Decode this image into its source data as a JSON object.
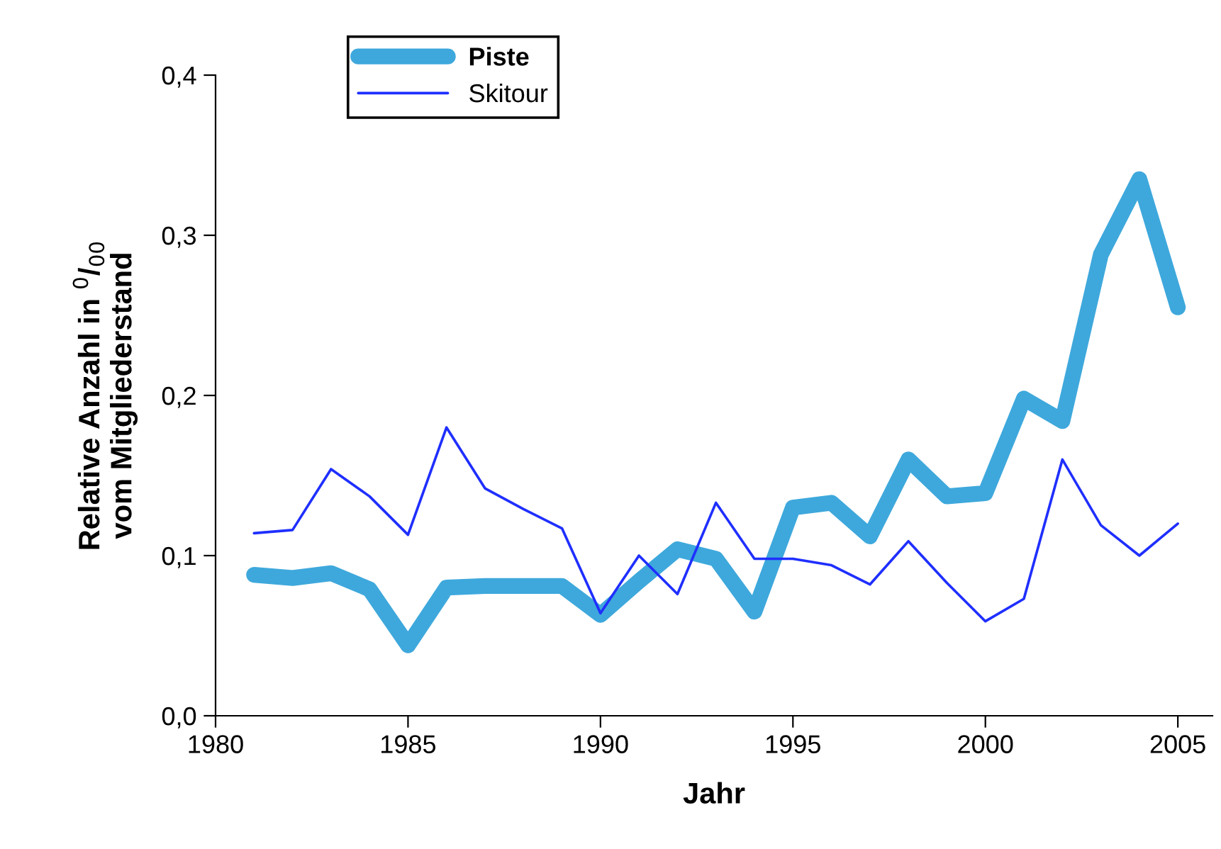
{
  "chart_data": {
    "type": "line",
    "xlabel": "Jahr",
    "ylabel": "Relative Anzahl in $^{0}$/$_{00}$\nvom Mitgliederstand",
    "x": [
      1981,
      1982,
      1983,
      1984,
      1985,
      1986,
      1987,
      1988,
      1989,
      1990,
      1991,
      1992,
      1993,
      1994,
      1995,
      1996,
      1997,
      1998,
      1999,
      2000,
      2001,
      2002,
      2003,
      2004,
      2005
    ],
    "series": [
      {
        "name": "Piste",
        "color": "#3ea8dc",
        "values": [
          0.088,
          0.086,
          0.089,
          0.079,
          0.044,
          0.08,
          0.081,
          0.081,
          0.081,
          0.063,
          0.084,
          0.104,
          0.098,
          0.065,
          0.13,
          0.133,
          0.112,
          0.16,
          0.137,
          0.139,
          0.198,
          0.184,
          0.288,
          0.335,
          0.255
        ]
      },
      {
        "name": "Skitour",
        "color": "#1f2fff",
        "values": [
          0.114,
          0.116,
          0.154,
          0.137,
          0.113,
          0.18,
          0.142,
          0.129,
          0.117,
          0.064,
          0.1,
          0.076,
          0.133,
          0.098,
          0.098,
          0.094,
          0.082,
          0.109,
          0.083,
          0.059,
          0.073,
          0.16,
          0.119,
          0.1,
          0.12
        ]
      }
    ],
    "xlim": [
      1980,
      2005.9
    ],
    "xticks": [
      1980,
      1985,
      1990,
      1995,
      2000,
      2005
    ],
    "ylim": [
      0,
      0.4
    ],
    "yticks": [
      {
        "value": 0,
        "label": "0,0"
      },
      {
        "value": 0.1,
        "label": "0,1"
      },
      {
        "value": 0.2,
        "label": "0,2"
      },
      {
        "value": 0.3,
        "label": "0,3"
      },
      {
        "value": 0.4,
        "label": "0,4"
      }
    ],
    "grid": false,
    "legend": "top left",
    "marker": "none",
    "line_style": "solid"
  }
}
